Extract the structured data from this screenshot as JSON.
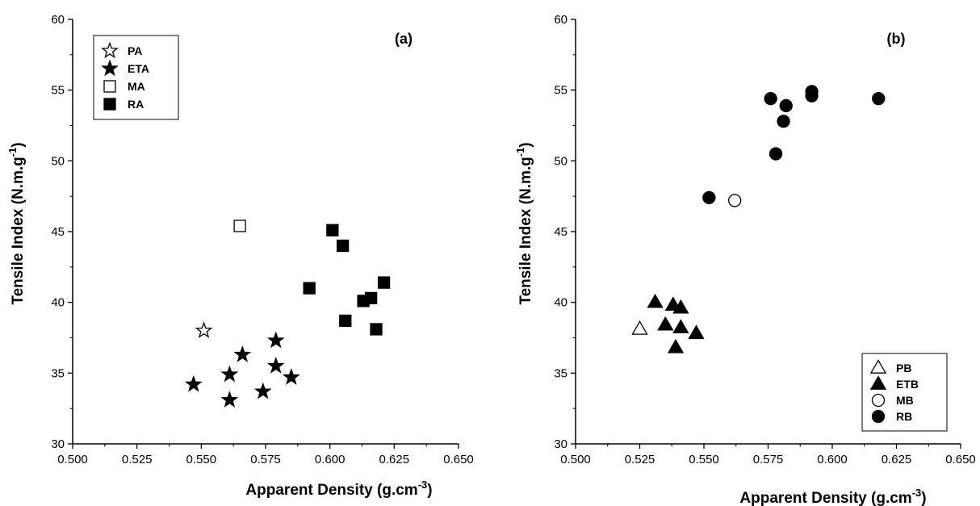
{
  "chart_data": [
    {
      "type": "scatter",
      "panel_label": "(a)",
      "xlabel_main": "Apparent Density (g.cm",
      "xlabel_sup": "-3",
      "xlabel_end": ")",
      "ylabel_main": "Tensile Index (N.m.g",
      "ylabel_sup": "-1",
      "ylabel_end": ")",
      "xlim": [
        0.5,
        0.65
      ],
      "ylim": [
        30,
        60
      ],
      "xticks": [
        "0.500",
        "0.525",
        "0.550",
        "0.575",
        "0.600",
        "0.625",
        "0.650"
      ],
      "yticks": [
        "30",
        "35",
        "40",
        "45",
        "50",
        "55",
        "60"
      ],
      "legend_position": "top-left",
      "series": [
        {
          "name": "PA",
          "marker": "star",
          "filled": false,
          "points": [
            [
              0.551,
              38.0
            ]
          ]
        },
        {
          "name": "ETA",
          "marker": "star",
          "filled": true,
          "points": [
            [
              0.547,
              34.2
            ],
            [
              0.561,
              34.9
            ],
            [
              0.561,
              33.1
            ],
            [
              0.566,
              36.3
            ],
            [
              0.574,
              33.7
            ],
            [
              0.579,
              37.3
            ],
            [
              0.579,
              35.5
            ],
            [
              0.585,
              34.7
            ]
          ]
        },
        {
          "name": "MA",
          "marker": "square",
          "filled": false,
          "points": [
            [
              0.565,
              45.4
            ]
          ]
        },
        {
          "name": "RA",
          "marker": "square",
          "filled": true,
          "points": [
            [
              0.592,
              41.0
            ],
            [
              0.601,
              45.1
            ],
            [
              0.605,
              44.0
            ],
            [
              0.606,
              38.7
            ],
            [
              0.613,
              40.1
            ],
            [
              0.616,
              40.3
            ],
            [
              0.618,
              38.1
            ],
            [
              0.621,
              41.4
            ]
          ]
        }
      ]
    },
    {
      "type": "scatter",
      "panel_label": "(b)",
      "xlabel_main": "Apparent Density (g.cm",
      "xlabel_sup": "-3",
      "xlabel_end": ")",
      "ylabel_main": "Tensile Index (N.m.g",
      "ylabel_sup": "-1",
      "ylabel_end": ")",
      "xlim": [
        0.5,
        0.65
      ],
      "ylim": [
        30,
        60
      ],
      "xticks": [
        "0.500",
        "0.525",
        "0.550",
        "0.575",
        "0.600",
        "0.625",
        "0.650"
      ],
      "yticks": [
        "30",
        "35",
        "40",
        "45",
        "50",
        "55",
        "60"
      ],
      "legend_position": "bottom-right",
      "series": [
        {
          "name": "PB",
          "marker": "triangle",
          "filled": false,
          "points": [
            [
              0.525,
              38.1
            ]
          ]
        },
        {
          "name": "ETB",
          "marker": "triangle",
          "filled": true,
          "points": [
            [
              0.531,
              40.0
            ],
            [
              0.535,
              38.4
            ],
            [
              0.538,
              39.8
            ],
            [
              0.539,
              36.8
            ],
            [
              0.541,
              39.6
            ],
            [
              0.541,
              38.2
            ],
            [
              0.547,
              37.8
            ]
          ]
        },
        {
          "name": "MB",
          "marker": "circle",
          "filled": false,
          "points": [
            [
              0.562,
              47.2
            ]
          ]
        },
        {
          "name": "RB",
          "marker": "circle",
          "filled": true,
          "points": [
            [
              0.552,
              47.4
            ],
            [
              0.576,
              54.4
            ],
            [
              0.578,
              50.5
            ],
            [
              0.581,
              52.8
            ],
            [
              0.582,
              53.9
            ],
            [
              0.592,
              54.9
            ],
            [
              0.592,
              54.6
            ],
            [
              0.618,
              54.4
            ]
          ]
        }
      ]
    }
  ]
}
